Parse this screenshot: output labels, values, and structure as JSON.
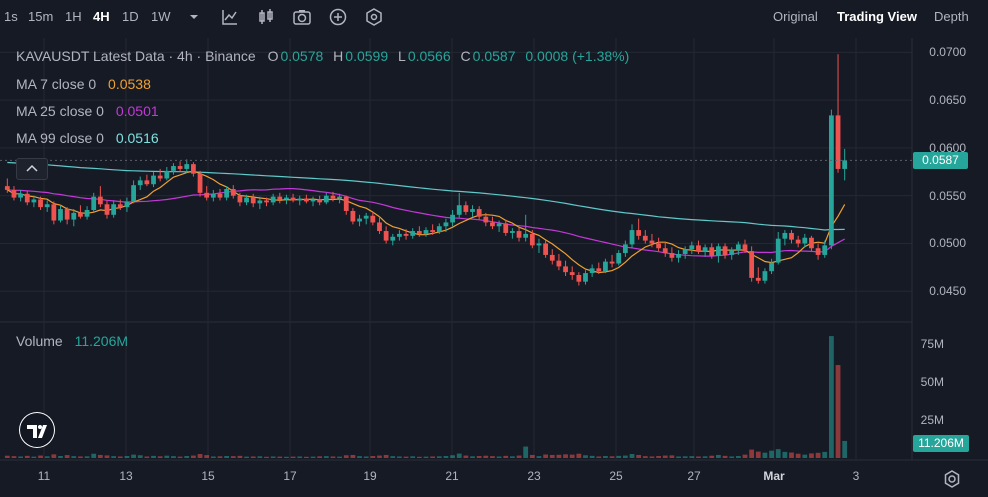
{
  "toolbar": {
    "timeframes": [
      "1s",
      "15m",
      "1H",
      "4H",
      "1D",
      "1W"
    ],
    "active_timeframe": "4H",
    "icons": [
      "chevron-down-icon",
      "line-chart-icon",
      "candle-chart-icon",
      "camera-icon",
      "add-indicator-icon",
      "settings-hex-icon"
    ],
    "views": [
      "Original",
      "Trading View",
      "Depth"
    ],
    "active_view": "Trading View"
  },
  "legend": {
    "title": "KAVAUSDT Latest Data · 4h · Binance",
    "open_label": "O",
    "open": "0.0578",
    "high_label": "H",
    "high": "0.0599",
    "low_label": "L",
    "low": "0.0566",
    "close_label": "C",
    "close": "0.0587",
    "change": "0.0008 (+1.38%)",
    "ma7_label": "MA 7 close 0",
    "ma7_value": "0.0538",
    "ma25_label": "MA 25 close 0",
    "ma25_value": "0.0501",
    "ma99_label": "MA 99 close 0",
    "ma99_value": "0.0516",
    "volume_label": "Volume",
    "volume_value": "11.206M",
    "collapse_icon": "chevron-up-icon"
  },
  "colors": {
    "up": "#26a69a",
    "down": "#ef5350",
    "ma7": "#f0a030",
    "ma25": "#c438d8",
    "ma99": "#5fc8c8",
    "background": "#161a25",
    "grid": "#252833"
  },
  "chart_data": {
    "type": "candlestick",
    "symbol": "KAVAUSDT",
    "interval": "4h",
    "exchange": "Binance",
    "ylim": [
      0.0422,
      0.0715
    ],
    "price_ticks": [
      "0.0700",
      "0.0650",
      "0.0600",
      "0.0550",
      "0.0500",
      "0.0450"
    ],
    "last_price": "0.0587",
    "x_ticks": [
      "11",
      "13",
      "15",
      "17",
      "19",
      "21",
      "23",
      "25",
      "27",
      "Mar",
      "3"
    ],
    "volume_ticks": [
      "75M",
      "50M",
      "25M"
    ],
    "volume_last": "11.206M",
    "candles": [
      {
        "o": 0.056,
        "h": 0.0568,
        "l": 0.0553,
        "c": 0.0556,
        "v": 1.5
      },
      {
        "o": 0.0556,
        "h": 0.056,
        "l": 0.0545,
        "c": 0.0548,
        "v": 1.2
      },
      {
        "o": 0.0548,
        "h": 0.0556,
        "l": 0.0544,
        "c": 0.0552,
        "v": 1.0
      },
      {
        "o": 0.0552,
        "h": 0.0555,
        "l": 0.054,
        "c": 0.0543,
        "v": 1.4
      },
      {
        "o": 0.0543,
        "h": 0.055,
        "l": 0.0538,
        "c": 0.0546,
        "v": 0.9
      },
      {
        "o": 0.0546,
        "h": 0.0549,
        "l": 0.0535,
        "c": 0.0538,
        "v": 1.6
      },
      {
        "o": 0.0538,
        "h": 0.0545,
        "l": 0.0533,
        "c": 0.0541,
        "v": 1.1
      },
      {
        "o": 0.0541,
        "h": 0.0544,
        "l": 0.052,
        "c": 0.0524,
        "v": 2.4
      },
      {
        "o": 0.0524,
        "h": 0.054,
        "l": 0.0522,
        "c": 0.0536,
        "v": 1.3
      },
      {
        "o": 0.0536,
        "h": 0.0538,
        "l": 0.052,
        "c": 0.0525,
        "v": 1.9
      },
      {
        "o": 0.0525,
        "h": 0.0536,
        "l": 0.0518,
        "c": 0.0532,
        "v": 1.2
      },
      {
        "o": 0.0532,
        "h": 0.054,
        "l": 0.0526,
        "c": 0.0528,
        "v": 1.0
      },
      {
        "o": 0.0528,
        "h": 0.0539,
        "l": 0.0525,
        "c": 0.0535,
        "v": 1.1
      },
      {
        "o": 0.0535,
        "h": 0.0553,
        "l": 0.0533,
        "c": 0.0549,
        "v": 2.8
      },
      {
        "o": 0.0549,
        "h": 0.056,
        "l": 0.0538,
        "c": 0.0541,
        "v": 2.0
      },
      {
        "o": 0.0541,
        "h": 0.0545,
        "l": 0.0526,
        "c": 0.053,
        "v": 1.7
      },
      {
        "o": 0.053,
        "h": 0.0545,
        "l": 0.0527,
        "c": 0.0541,
        "v": 1.2
      },
      {
        "o": 0.0541,
        "h": 0.0546,
        "l": 0.0535,
        "c": 0.0538,
        "v": 1.0
      },
      {
        "o": 0.0538,
        "h": 0.0548,
        "l": 0.0533,
        "c": 0.0544,
        "v": 1.3
      },
      {
        "o": 0.0544,
        "h": 0.0566,
        "l": 0.0542,
        "c": 0.0561,
        "v": 2.2
      },
      {
        "o": 0.0561,
        "h": 0.057,
        "l": 0.0556,
        "c": 0.0566,
        "v": 1.8
      },
      {
        "o": 0.0566,
        "h": 0.0572,
        "l": 0.056,
        "c": 0.0562,
        "v": 1.0
      },
      {
        "o": 0.0562,
        "h": 0.0575,
        "l": 0.0559,
        "c": 0.0571,
        "v": 1.4
      },
      {
        "o": 0.0571,
        "h": 0.0578,
        "l": 0.0565,
        "c": 0.0568,
        "v": 1.1
      },
      {
        "o": 0.0568,
        "h": 0.058,
        "l": 0.0566,
        "c": 0.0576,
        "v": 1.5
      },
      {
        "o": 0.0576,
        "h": 0.0584,
        "l": 0.0572,
        "c": 0.0581,
        "v": 1.2
      },
      {
        "o": 0.0581,
        "h": 0.0586,
        "l": 0.0575,
        "c": 0.0578,
        "v": 0.9
      },
      {
        "o": 0.0578,
        "h": 0.0588,
        "l": 0.0574,
        "c": 0.0583,
        "v": 1.3
      },
      {
        "o": 0.0583,
        "h": 0.0585,
        "l": 0.057,
        "c": 0.0573,
        "v": 1.6
      },
      {
        "o": 0.0573,
        "h": 0.0576,
        "l": 0.0549,
        "c": 0.0553,
        "v": 2.6
      },
      {
        "o": 0.0553,
        "h": 0.056,
        "l": 0.0545,
        "c": 0.0548,
        "v": 1.9
      },
      {
        "o": 0.0548,
        "h": 0.0556,
        "l": 0.0544,
        "c": 0.0552,
        "v": 1.0
      },
      {
        "o": 0.0552,
        "h": 0.0557,
        "l": 0.0545,
        "c": 0.0548,
        "v": 1.1
      },
      {
        "o": 0.0548,
        "h": 0.056,
        "l": 0.0545,
        "c": 0.0557,
        "v": 1.3
      },
      {
        "o": 0.0557,
        "h": 0.0561,
        "l": 0.0547,
        "c": 0.055,
        "v": 1.2
      },
      {
        "o": 0.055,
        "h": 0.0553,
        "l": 0.0539,
        "c": 0.0543,
        "v": 1.4
      },
      {
        "o": 0.0543,
        "h": 0.0551,
        "l": 0.054,
        "c": 0.0548,
        "v": 0.9
      },
      {
        "o": 0.0548,
        "h": 0.0552,
        "l": 0.0538,
        "c": 0.0542,
        "v": 1.0
      },
      {
        "o": 0.0542,
        "h": 0.0549,
        "l": 0.0536,
        "c": 0.0545,
        "v": 1.1
      },
      {
        "o": 0.0545,
        "h": 0.0548,
        "l": 0.0539,
        "c": 0.0543,
        "v": 0.8
      },
      {
        "o": 0.0543,
        "h": 0.0552,
        "l": 0.054,
        "c": 0.0549,
        "v": 1.0
      },
      {
        "o": 0.0549,
        "h": 0.0553,
        "l": 0.0542,
        "c": 0.0546,
        "v": 0.9
      },
      {
        "o": 0.0546,
        "h": 0.0551,
        "l": 0.0541,
        "c": 0.0548,
        "v": 0.8
      },
      {
        "o": 0.0548,
        "h": 0.0552,
        "l": 0.0543,
        "c": 0.0545,
        "v": 0.9
      },
      {
        "o": 0.0545,
        "h": 0.055,
        "l": 0.054,
        "c": 0.0547,
        "v": 1.0
      },
      {
        "o": 0.0547,
        "h": 0.0551,
        "l": 0.0542,
        "c": 0.0544,
        "v": 0.8
      },
      {
        "o": 0.0544,
        "h": 0.0549,
        "l": 0.0539,
        "c": 0.0546,
        "v": 0.9
      },
      {
        "o": 0.0546,
        "h": 0.055,
        "l": 0.054,
        "c": 0.0543,
        "v": 1.1
      },
      {
        "o": 0.0543,
        "h": 0.0553,
        "l": 0.0541,
        "c": 0.055,
        "v": 1.2
      },
      {
        "o": 0.055,
        "h": 0.0554,
        "l": 0.0544,
        "c": 0.0547,
        "v": 1.0
      },
      {
        "o": 0.0547,
        "h": 0.0552,
        "l": 0.0542,
        "c": 0.0549,
        "v": 0.9
      },
      {
        "o": 0.0549,
        "h": 0.055,
        "l": 0.053,
        "c": 0.0534,
        "v": 1.8
      },
      {
        "o": 0.0534,
        "h": 0.0537,
        "l": 0.052,
        "c": 0.0523,
        "v": 2.0
      },
      {
        "o": 0.0523,
        "h": 0.053,
        "l": 0.0518,
        "c": 0.0526,
        "v": 1.2
      },
      {
        "o": 0.0526,
        "h": 0.0532,
        "l": 0.052,
        "c": 0.0529,
        "v": 1.0
      },
      {
        "o": 0.0529,
        "h": 0.0533,
        "l": 0.0519,
        "c": 0.0522,
        "v": 1.3
      },
      {
        "o": 0.0522,
        "h": 0.0528,
        "l": 0.051,
        "c": 0.0513,
        "v": 1.6
      },
      {
        "o": 0.0513,
        "h": 0.0518,
        "l": 0.05,
        "c": 0.0503,
        "v": 2.0
      },
      {
        "o": 0.0503,
        "h": 0.051,
        "l": 0.0498,
        "c": 0.0507,
        "v": 1.2
      },
      {
        "o": 0.0507,
        "h": 0.0514,
        "l": 0.0503,
        "c": 0.051,
        "v": 1.0
      },
      {
        "o": 0.051,
        "h": 0.0515,
        "l": 0.0504,
        "c": 0.0508,
        "v": 0.9
      },
      {
        "o": 0.0508,
        "h": 0.0516,
        "l": 0.0505,
        "c": 0.0513,
        "v": 1.1
      },
      {
        "o": 0.0513,
        "h": 0.0518,
        "l": 0.0507,
        "c": 0.051,
        "v": 0.8
      },
      {
        "o": 0.051,
        "h": 0.0517,
        "l": 0.0507,
        "c": 0.0514,
        "v": 0.9
      },
      {
        "o": 0.0514,
        "h": 0.052,
        "l": 0.0509,
        "c": 0.0512,
        "v": 1.0
      },
      {
        "o": 0.0512,
        "h": 0.0521,
        "l": 0.051,
        "c": 0.0518,
        "v": 1.1
      },
      {
        "o": 0.0518,
        "h": 0.0526,
        "l": 0.0512,
        "c": 0.0522,
        "v": 1.3
      },
      {
        "o": 0.0522,
        "h": 0.0535,
        "l": 0.0518,
        "c": 0.053,
        "v": 1.8
      },
      {
        "o": 0.053,
        "h": 0.0553,
        "l": 0.0527,
        "c": 0.054,
        "v": 2.9
      },
      {
        "o": 0.054,
        "h": 0.0544,
        "l": 0.053,
        "c": 0.0533,
        "v": 1.6
      },
      {
        "o": 0.0533,
        "h": 0.054,
        "l": 0.0528,
        "c": 0.0536,
        "v": 1.1
      },
      {
        "o": 0.0536,
        "h": 0.0539,
        "l": 0.0525,
        "c": 0.0528,
        "v": 1.3
      },
      {
        "o": 0.0528,
        "h": 0.0532,
        "l": 0.0518,
        "c": 0.0522,
        "v": 1.5
      },
      {
        "o": 0.0522,
        "h": 0.0528,
        "l": 0.0515,
        "c": 0.0518,
        "v": 1.2
      },
      {
        "o": 0.0518,
        "h": 0.0524,
        "l": 0.0512,
        "c": 0.0521,
        "v": 1.0
      },
      {
        "o": 0.0521,
        "h": 0.0525,
        "l": 0.0508,
        "c": 0.0511,
        "v": 1.4
      },
      {
        "o": 0.0511,
        "h": 0.0516,
        "l": 0.0505,
        "c": 0.0513,
        "v": 1.1
      },
      {
        "o": 0.0513,
        "h": 0.0517,
        "l": 0.0502,
        "c": 0.0506,
        "v": 1.6
      },
      {
        "o": 0.0506,
        "h": 0.053,
        "l": 0.0502,
        "c": 0.051,
        "v": 7.5
      },
      {
        "o": 0.051,
        "h": 0.0514,
        "l": 0.0495,
        "c": 0.0498,
        "v": 2.0
      },
      {
        "o": 0.0498,
        "h": 0.0505,
        "l": 0.049,
        "c": 0.05,
        "v": 1.2
      },
      {
        "o": 0.05,
        "h": 0.0503,
        "l": 0.0485,
        "c": 0.0488,
        "v": 2.3
      },
      {
        "o": 0.0488,
        "h": 0.0494,
        "l": 0.0478,
        "c": 0.0482,
        "v": 2.0
      },
      {
        "o": 0.0482,
        "h": 0.0489,
        "l": 0.0472,
        "c": 0.0476,
        "v": 2.1
      },
      {
        "o": 0.0476,
        "h": 0.0482,
        "l": 0.0466,
        "c": 0.047,
        "v": 2.4
      },
      {
        "o": 0.047,
        "h": 0.0476,
        "l": 0.0462,
        "c": 0.0467,
        "v": 2.2
      },
      {
        "o": 0.0467,
        "h": 0.047,
        "l": 0.0456,
        "c": 0.046,
        "v": 2.8
      },
      {
        "o": 0.046,
        "h": 0.0472,
        "l": 0.0457,
        "c": 0.0469,
        "v": 1.8
      },
      {
        "o": 0.0469,
        "h": 0.0478,
        "l": 0.0465,
        "c": 0.0474,
        "v": 1.4
      },
      {
        "o": 0.0474,
        "h": 0.048,
        "l": 0.0468,
        "c": 0.0471,
        "v": 1.0
      },
      {
        "o": 0.0471,
        "h": 0.0484,
        "l": 0.0469,
        "c": 0.0481,
        "v": 1.3
      },
      {
        "o": 0.0481,
        "h": 0.0488,
        "l": 0.0475,
        "c": 0.0479,
        "v": 1.1
      },
      {
        "o": 0.0479,
        "h": 0.0493,
        "l": 0.0477,
        "c": 0.049,
        "v": 1.4
      },
      {
        "o": 0.049,
        "h": 0.0503,
        "l": 0.0486,
        "c": 0.0499,
        "v": 1.6
      },
      {
        "o": 0.0499,
        "h": 0.052,
        "l": 0.0495,
        "c": 0.0514,
        "v": 2.6
      },
      {
        "o": 0.0514,
        "h": 0.0526,
        "l": 0.0504,
        "c": 0.0508,
        "v": 2.0
      },
      {
        "o": 0.0508,
        "h": 0.0514,
        "l": 0.05,
        "c": 0.0503,
        "v": 1.2
      },
      {
        "o": 0.0503,
        "h": 0.051,
        "l": 0.0496,
        "c": 0.05,
        "v": 1.0
      },
      {
        "o": 0.05,
        "h": 0.0506,
        "l": 0.0492,
        "c": 0.0495,
        "v": 1.3
      },
      {
        "o": 0.0495,
        "h": 0.0502,
        "l": 0.0486,
        "c": 0.049,
        "v": 1.6
      },
      {
        "o": 0.049,
        "h": 0.0496,
        "l": 0.0481,
        "c": 0.0485,
        "v": 1.7
      },
      {
        "o": 0.0485,
        "h": 0.0493,
        "l": 0.048,
        "c": 0.0489,
        "v": 1.0
      },
      {
        "o": 0.0489,
        "h": 0.0497,
        "l": 0.0484,
        "c": 0.0494,
        "v": 1.1
      },
      {
        "o": 0.0494,
        "h": 0.0502,
        "l": 0.0489,
        "c": 0.0498,
        "v": 1.2
      },
      {
        "o": 0.0498,
        "h": 0.0503,
        "l": 0.0489,
        "c": 0.0492,
        "v": 1.0
      },
      {
        "o": 0.0492,
        "h": 0.0499,
        "l": 0.0486,
        "c": 0.0496,
        "v": 1.1
      },
      {
        "o": 0.0496,
        "h": 0.05,
        "l": 0.0484,
        "c": 0.0487,
        "v": 1.5
      },
      {
        "o": 0.0487,
        "h": 0.05,
        "l": 0.048,
        "c": 0.0497,
        "v": 2.0
      },
      {
        "o": 0.0497,
        "h": 0.05,
        "l": 0.0484,
        "c": 0.0488,
        "v": 1.4
      },
      {
        "o": 0.0488,
        "h": 0.0496,
        "l": 0.0483,
        "c": 0.0493,
        "v": 1.0
      },
      {
        "o": 0.0493,
        "h": 0.0502,
        "l": 0.0488,
        "c": 0.0499,
        "v": 1.3
      },
      {
        "o": 0.0499,
        "h": 0.0504,
        "l": 0.049,
        "c": 0.0492,
        "v": 2.2
      },
      {
        "o": 0.0492,
        "h": 0.0497,
        "l": 0.046,
        "c": 0.0464,
        "v": 5.5
      },
      {
        "o": 0.0464,
        "h": 0.0475,
        "l": 0.0458,
        "c": 0.0461,
        "v": 4.2
      },
      {
        "o": 0.0461,
        "h": 0.0474,
        "l": 0.0458,
        "c": 0.0471,
        "v": 3.5
      },
      {
        "o": 0.0471,
        "h": 0.0484,
        "l": 0.0468,
        "c": 0.048,
        "v": 4.8
      },
      {
        "o": 0.048,
        "h": 0.0512,
        "l": 0.0478,
        "c": 0.0505,
        "v": 5.8
      },
      {
        "o": 0.0505,
        "h": 0.0514,
        "l": 0.0498,
        "c": 0.0511,
        "v": 4.0
      },
      {
        "o": 0.0511,
        "h": 0.0514,
        "l": 0.05,
        "c": 0.0504,
        "v": 3.6
      },
      {
        "o": 0.0504,
        "h": 0.0508,
        "l": 0.0496,
        "c": 0.05,
        "v": 2.8
      },
      {
        "o": 0.05,
        "h": 0.051,
        "l": 0.0496,
        "c": 0.0506,
        "v": 2.2
      },
      {
        "o": 0.0506,
        "h": 0.0508,
        "l": 0.0492,
        "c": 0.0495,
        "v": 3.0
      },
      {
        "o": 0.0495,
        "h": 0.05,
        "l": 0.0483,
        "c": 0.0488,
        "v": 3.4
      },
      {
        "o": 0.0488,
        "h": 0.0503,
        "l": 0.0485,
        "c": 0.0498,
        "v": 4.0
      },
      {
        "o": 0.0498,
        "h": 0.064,
        "l": 0.0494,
        "c": 0.0634,
        "v": 80.0
      },
      {
        "o": 0.0634,
        "h": 0.0698,
        "l": 0.0574,
        "c": 0.0578,
        "v": 61.0
      },
      {
        "o": 0.0578,
        "h": 0.0599,
        "l": 0.0566,
        "c": 0.0587,
        "v": 11.206
      }
    ]
  }
}
